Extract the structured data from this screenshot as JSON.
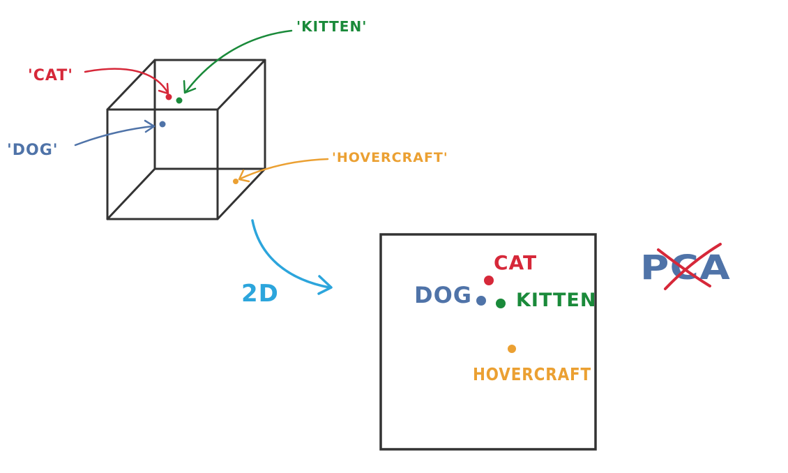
{
  "colors": {
    "cat": "#d62839",
    "kitten": "#1a8a3a",
    "dog": "#4f73a8",
    "hovercraft": "#eba032",
    "arrow": "#2ca5dc",
    "cube": "#333333",
    "pca_text": "#4f73a8",
    "pca_cross": "#d62839"
  },
  "labels_3d": {
    "cat": "'CAT'",
    "kitten": "'KITTEN'",
    "dog": "'DOG'",
    "hovercraft": "'HOVERCRAFT'"
  },
  "transition": {
    "label": "2D"
  },
  "labels_2d": {
    "cat": "CAT",
    "kitten": "KITTEN",
    "dog": "DOG",
    "hovercraft": "HOVERCRAFT"
  },
  "method": {
    "text": "PCA",
    "crossed_out": true
  }
}
